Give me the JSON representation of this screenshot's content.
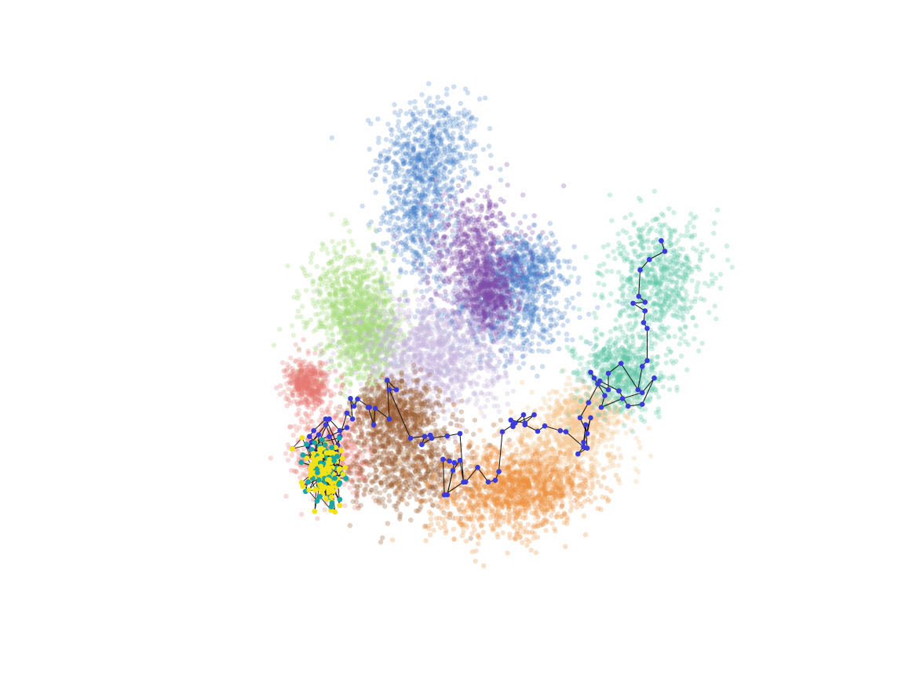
{
  "chart_data": {
    "type": "scatter",
    "title": "",
    "xlabel": "",
    "ylabel": "",
    "grid": false,
    "axes_visible": false,
    "legend": "none",
    "xlim": [
      0,
      1
    ],
    "ylim": [
      0,
      1
    ],
    "clusters": [
      {
        "color": "#3f7bc9",
        "opacity": 0.25,
        "count": 2000,
        "blobs": [
          [
            0.45,
            0.83,
            0.035,
            0.045
          ],
          [
            0.43,
            0.72,
            0.025,
            0.06
          ],
          [
            0.56,
            0.55,
            0.05,
            0.04
          ],
          [
            0.58,
            0.63,
            0.025,
            0.03
          ]
        ]
      },
      {
        "color": "#7d4ca8",
        "opacity": 0.28,
        "count": 1100,
        "blobs": [
          [
            0.51,
            0.66,
            0.035,
            0.05
          ],
          [
            0.53,
            0.58,
            0.02,
            0.03
          ]
        ]
      },
      {
        "color": "#a6dc7c",
        "opacity": 0.3,
        "count": 1300,
        "blobs": [
          [
            0.335,
            0.57,
            0.03,
            0.05
          ],
          [
            0.36,
            0.51,
            0.025,
            0.04
          ]
        ]
      },
      {
        "color": "#c8b6dd",
        "opacity": 0.3,
        "count": 1200,
        "blobs": [
          [
            0.45,
            0.48,
            0.05,
            0.05
          ]
        ]
      },
      {
        "color": "#e57b72",
        "opacity": 0.28,
        "count": 900,
        "blobs": [
          [
            0.31,
            0.31,
            0.03,
            0.04
          ],
          [
            0.275,
            0.43,
            0.015,
            0.02
          ]
        ]
      },
      {
        "color": "#9a5c32",
        "opacity": 0.3,
        "count": 1400,
        "blobs": [
          [
            0.42,
            0.29,
            0.045,
            0.04
          ],
          [
            0.4,
            0.38,
            0.03,
            0.03
          ]
        ]
      },
      {
        "color": "#ed8e3c",
        "opacity": 0.28,
        "count": 1500,
        "blobs": [
          [
            0.54,
            0.24,
            0.05,
            0.04
          ],
          [
            0.6,
            0.26,
            0.04,
            0.03
          ]
        ]
      },
      {
        "color": "#f5c893",
        "opacity": 0.3,
        "count": 900,
        "blobs": [
          [
            0.64,
            0.33,
            0.04,
            0.035
          ],
          [
            0.67,
            0.38,
            0.025,
            0.025
          ]
        ]
      },
      {
        "color": "#5fc4a7",
        "opacity": 0.28,
        "count": 1300,
        "blobs": [
          [
            0.77,
            0.61,
            0.035,
            0.05
          ],
          [
            0.72,
            0.45,
            0.03,
            0.035
          ]
        ]
      }
    ],
    "trajectory": [
      [
        0.775,
        0.675
      ],
      [
        0.78,
        0.657
      ],
      [
        0.758,
        0.643
      ],
      [
        0.745,
        0.625
      ],
      [
        0.743,
        0.58
      ],
      [
        0.752,
        0.57
      ],
      [
        0.735,
        0.568
      ],
      [
        0.752,
        0.555
      ],
      [
        0.75,
        0.535
      ],
      [
        0.755,
        0.525
      ],
      [
        0.755,
        0.47
      ],
      [
        0.748,
        0.46
      ],
      [
        0.742,
        0.42
      ],
      [
        0.718,
        0.465
      ],
      [
        0.7,
        0.448
      ],
      [
        0.7,
        0.42
      ],
      [
        0.685,
        0.43
      ],
      [
        0.675,
        0.45
      ],
      [
        0.68,
        0.44
      ],
      [
        0.695,
        0.41
      ],
      [
        0.69,
        0.39
      ],
      [
        0.72,
        0.405
      ],
      [
        0.748,
        0.415
      ],
      [
        0.765,
        0.44
      ],
      [
        0.748,
        0.395
      ],
      [
        0.728,
        0.392
      ],
      [
        0.715,
        0.418
      ],
      [
        0.688,
        0.435
      ],
      [
        0.672,
        0.398
      ],
      [
        0.66,
        0.372
      ],
      [
        0.67,
        0.345
      ],
      [
        0.675,
        0.372
      ],
      [
        0.665,
        0.33
      ],
      [
        0.668,
        0.36
      ],
      [
        0.67,
        0.32
      ],
      [
        0.657,
        0.31
      ],
      [
        0.665,
        0.322
      ],
      [
        0.64,
        0.348
      ],
      [
        0.632,
        0.35
      ],
      [
        0.61,
        0.358
      ],
      [
        0.6,
        0.349
      ],
      [
        0.582,
        0.36
      ],
      [
        0.58,
        0.377
      ],
      [
        0.568,
        0.363
      ],
      [
        0.565,
        0.357
      ],
      [
        0.562,
        0.368
      ],
      [
        0.582,
        0.363
      ],
      [
        0.595,
        0.377
      ],
      [
        0.565,
        0.36
      ],
      [
        0.55,
        0.348
      ],
      [
        0.545,
        0.28
      ],
      [
        0.54,
        0.265
      ],
      [
        0.53,
        0.262
      ],
      [
        0.515,
        0.287
      ],
      [
        0.498,
        0.262
      ],
      [
        0.495,
        0.262
      ],
      [
        0.49,
        0.299
      ],
      [
        0.48,
        0.282
      ],
      [
        0.472,
        0.24
      ],
      [
        0.482,
        0.295
      ],
      [
        0.475,
        0.298
      ],
      [
        0.466,
        0.301
      ],
      [
        0.468,
        0.24
      ],
      [
        0.495,
        0.262
      ],
      [
        0.49,
        0.345
      ],
      [
        0.472,
        0.341
      ],
      [
        0.45,
        0.337
      ],
      [
        0.436,
        0.326
      ],
      [
        0.44,
        0.34
      ],
      [
        0.448,
        0.342
      ],
      [
        0.42,
        0.337
      ],
      [
        0.39,
        0.42
      ],
      [
        0.4,
        0.42
      ],
      [
        0.387,
        0.436
      ],
      [
        0.39,
        0.37
      ],
      [
        0.37,
        0.388
      ],
      [
        0.368,
        0.36
      ],
      [
        0.36,
        0.39
      ],
      [
        0.362,
        0.39
      ],
      [
        0.345,
        0.404
      ],
      [
        0.34,
        0.392
      ],
      [
        0.335,
        0.405
      ],
      [
        0.338,
        0.37
      ],
      [
        0.33,
        0.38
      ],
      [
        0.32,
        0.34
      ],
      [
        0.317,
        0.325
      ],
      [
        0.3,
        0.37
      ],
      [
        0.283,
        0.35
      ],
      [
        0.277,
        0.34
      ],
      [
        0.29,
        0.323
      ],
      [
        0.29,
        0.343
      ],
      [
        0.275,
        0.323
      ],
      [
        0.285,
        0.315
      ],
      [
        0.305,
        0.37
      ],
      [
        0.32,
        0.35
      ],
      [
        0.33,
        0.355
      ],
      [
        0.305,
        0.34
      ],
      [
        0.28,
        0.33
      ],
      [
        0.3,
        0.36
      ],
      [
        0.315,
        0.315
      ]
    ],
    "endpoint_cluster": {
      "center": [
        0.3,
        0.28
      ],
      "spread": [
        0.013,
        0.028
      ],
      "count": 180
    },
    "trajectory_color": "#3b3bdb",
    "endpoint_colors": [
      "#f5e216",
      "#1aa6a6"
    ]
  }
}
